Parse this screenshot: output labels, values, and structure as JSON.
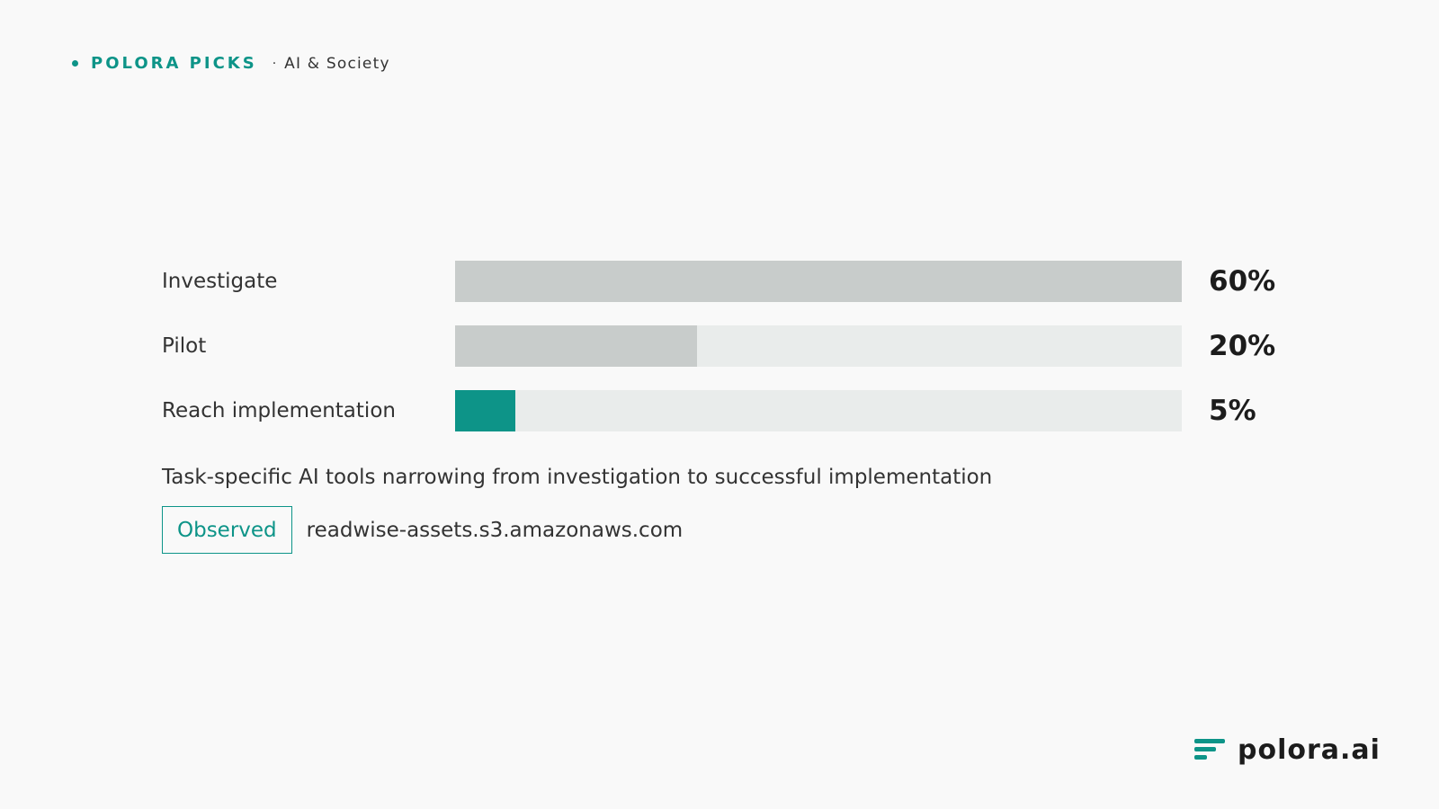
{
  "header": {
    "brand": "POLORA PICKS",
    "separator": "·",
    "topic": "AI & Society"
  },
  "chart_data": {
    "type": "bar",
    "orientation": "horizontal",
    "categories": [
      "Investigate",
      "Pilot",
      "Reach implementation"
    ],
    "values": [
      60,
      20,
      5
    ],
    "value_labels": [
      "60%",
      "20%",
      "5%"
    ],
    "xlim": [
      0,
      60
    ],
    "grid": false,
    "colors": [
      "#c8cccb",
      "#c8cccb",
      "#0d9488"
    ],
    "track_color": "#e9eceb"
  },
  "caption": "Task-specific AI tools narrowing from investigation to successful implementation",
  "footnote": {
    "badge": "Observed",
    "source": "readwise-assets.s3.amazonaws.com"
  },
  "logo": {
    "text": "polora.ai",
    "icon": "bars-logo-icon"
  },
  "colors": {
    "accent": "#0d9488",
    "background": "#f9f9f9"
  }
}
